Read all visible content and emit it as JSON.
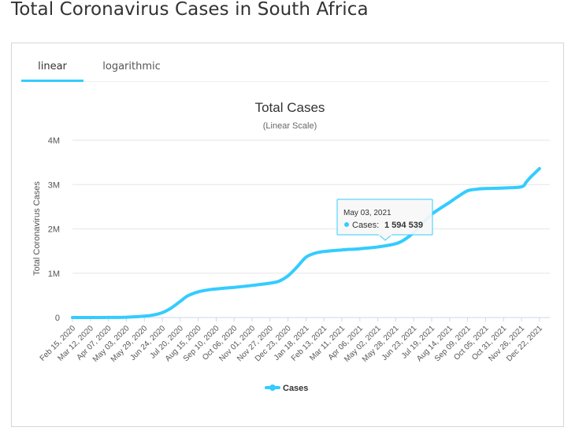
{
  "page": {
    "title": "Total Coronavirus Cases in South Africa"
  },
  "tabs": [
    {
      "label": "linear",
      "active": true
    },
    {
      "label": "logarithmic",
      "active": false
    }
  ],
  "tooltip": {
    "date": "May 03, 2021",
    "label": "Cases:",
    "value": "1 594 539"
  },
  "colors": {
    "series": "#33ccff",
    "tab_underline": "#33ccff",
    "grid": "#e6e6e6"
  },
  "chart_data": {
    "type": "line",
    "title": "Total Cases",
    "subtitle": "(Linear Scale)",
    "ylabel": "Total Coronavirus Cases",
    "xlabel": "",
    "ylim": [
      0,
      4000000
    ],
    "y_ticks": [
      {
        "value": 0,
        "label": "0"
      },
      {
        "value": 1000000,
        "label": "1M"
      },
      {
        "value": 2000000,
        "label": "2M"
      },
      {
        "value": 3000000,
        "label": "3M"
      },
      {
        "value": 4000000,
        "label": "4M"
      }
    ],
    "x_range": [
      "2020-02-15",
      "2022-01-06"
    ],
    "x_ticks": [
      "Feb 15, 2020",
      "Mar 12, 2020",
      "Apr 07, 2020",
      "May 03, 2020",
      "May 29, 2020",
      "Jun 24, 2020",
      "Jul 20, 2020",
      "Aug 15, 2020",
      "Sep 10, 2020",
      "Oct 06, 2020",
      "Nov 01, 2020",
      "Nov 27, 2020",
      "Dec 23, 2020",
      "Jan 18, 2021",
      "Feb 13, 2021",
      "Mar 11, 2021",
      "Apr 06, 2021",
      "May 02, 2021",
      "May 28, 2021",
      "Jun 23, 2021",
      "Jul 19, 2021",
      "Aug 14, 2021",
      "Sep 09, 2021",
      "Oct 05, 2021",
      "Oct 31, 2021",
      "Nov 26, 2021",
      "Dec 22, 2021"
    ],
    "legend": {
      "position": "bottom-center",
      "entries": [
        "Cases"
      ]
    },
    "grid": true,
    "series": [
      {
        "name": "Cases",
        "points": [
          [
            "2020-02-15",
            0
          ],
          [
            "2020-03-12",
            0
          ],
          [
            "2020-04-07",
            2000
          ],
          [
            "2020-05-03",
            7000
          ],
          [
            "2020-05-29",
            30000
          ],
          [
            "2020-06-12",
            61000
          ],
          [
            "2020-06-24",
            110000
          ],
          [
            "2020-07-07",
            215000
          ],
          [
            "2020-07-20",
            365000
          ],
          [
            "2020-07-31",
            490000
          ],
          [
            "2020-08-15",
            580000
          ],
          [
            "2020-08-31",
            627000
          ],
          [
            "2020-09-10",
            646000
          ],
          [
            "2020-10-06",
            681000
          ],
          [
            "2020-11-01",
            724000
          ],
          [
            "2020-11-27",
            775000
          ],
          [
            "2020-12-10",
            820000
          ],
          [
            "2020-12-23",
            940000
          ],
          [
            "2021-01-05",
            1140000
          ],
          [
            "2021-01-18",
            1360000
          ],
          [
            "2021-01-31",
            1450000
          ],
          [
            "2021-02-13",
            1490000
          ],
          [
            "2021-03-11",
            1525000
          ],
          [
            "2021-04-06",
            1552000
          ],
          [
            "2021-05-03",
            1594539
          ],
          [
            "2021-05-28",
            1665000
          ],
          [
            "2021-06-10",
            1760000
          ],
          [
            "2021-06-23",
            1920000
          ],
          [
            "2021-07-07",
            2150000
          ],
          [
            "2021-07-19",
            2330000
          ],
          [
            "2021-08-01",
            2470000
          ],
          [
            "2021-08-14",
            2600000
          ],
          [
            "2021-08-27",
            2740000
          ],
          [
            "2021-09-09",
            2860000
          ],
          [
            "2021-09-22",
            2895000
          ],
          [
            "2021-10-05",
            2910000
          ],
          [
            "2021-10-31",
            2922000
          ],
          [
            "2021-11-26",
            2950000
          ],
          [
            "2021-12-03",
            3060000
          ],
          [
            "2021-12-10",
            3180000
          ],
          [
            "2021-12-22",
            3360000
          ]
        ]
      }
    ]
  }
}
